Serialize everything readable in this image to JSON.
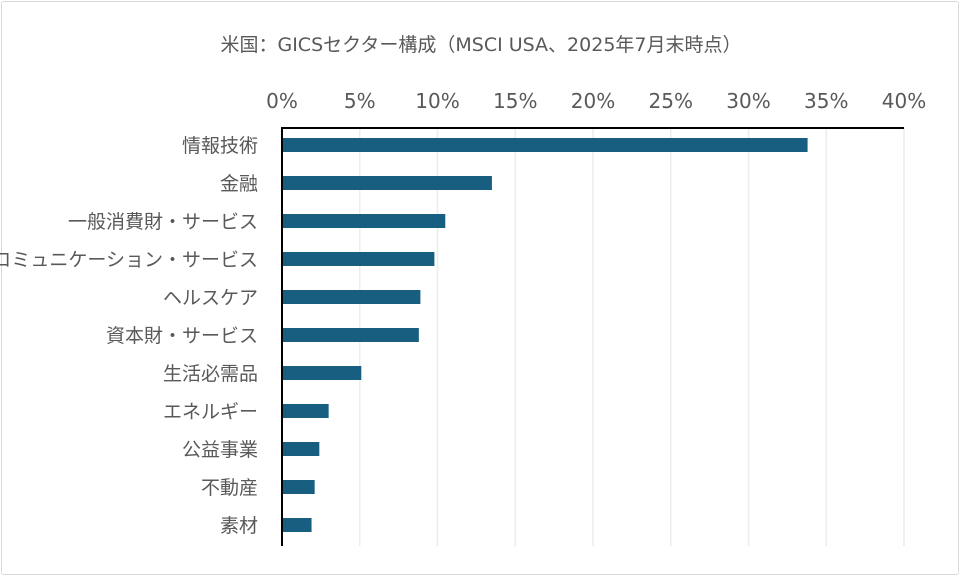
{
  "chart_data": {
    "type": "bar",
    "orientation": "horizontal",
    "title": "米国：GICSセクター構成（MSCI USA、2025年7月末時点）",
    "categories": [
      "情報技術",
      "金融",
      "一般消費財・サービス",
      "コミュニケーション・サービス",
      "ヘルスケア",
      "資本財・サービス",
      "生活必需品",
      "エネルギー",
      "公益事業",
      "不動産",
      "素材"
    ],
    "values": [
      33.8,
      13.5,
      10.5,
      9.8,
      8.9,
      8.8,
      5.1,
      3.0,
      2.4,
      2.1,
      1.9
    ],
    "unit": "%",
    "xlim": [
      0,
      40
    ],
    "xticks": [
      "0%",
      "5%",
      "10%",
      "15%",
      "20%",
      "25%",
      "30%",
      "35%",
      "40%"
    ],
    "xaxis_position": "top",
    "grid": true,
    "legend": "none",
    "bar_color": "#175e80",
    "grid_color": "#ececec"
  }
}
